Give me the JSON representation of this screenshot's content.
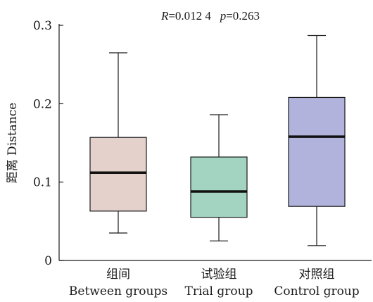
{
  "chart_data": {
    "type": "box",
    "title_parts": [
      {
        "text": "R",
        "italic": true
      },
      {
        "text": "=0.012 4   ",
        "italic": false
      },
      {
        "text": "p",
        "italic": true
      },
      {
        "text": "=0.263",
        "italic": false
      }
    ],
    "ylabel": "距离 Distance",
    "ylim": [
      0,
      0.3
    ],
    "yticks": [
      {
        "value": 0,
        "label": "0"
      },
      {
        "value": 0.1,
        "label": "0.1"
      },
      {
        "value": 0.2,
        "label": "0.2"
      },
      {
        "value": 0.3,
        "label": "0.3"
      }
    ],
    "groups": [
      {
        "label_cn": "组间",
        "label_en": "Between groups",
        "min": 0.035,
        "q1": 0.063,
        "median": 0.112,
        "q3": 0.157,
        "max": 0.265,
        "color": "#e5d1cb"
      },
      {
        "label_cn": "试验组",
        "label_en": "Trial group",
        "min": 0.025,
        "q1": 0.055,
        "median": 0.088,
        "q3": 0.132,
        "max": 0.186,
        "color": "#a3d4c1"
      },
      {
        "label_cn": "对照组",
        "label_en": "Control group",
        "min": 0.019,
        "q1": 0.069,
        "median": 0.158,
        "q3": 0.208,
        "max": 0.287,
        "color": "#b1b3dc"
      }
    ]
  }
}
